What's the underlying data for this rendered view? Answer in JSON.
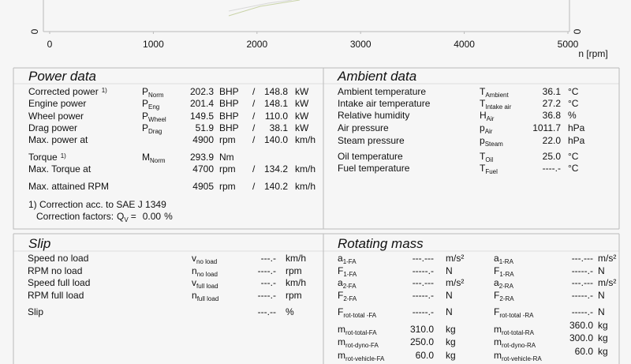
{
  "chart": {
    "xticks": [
      0,
      1000,
      2000,
      3000,
      4000,
      5000
    ],
    "xlabel": "n [rpm]",
    "y_left_tick": "0",
    "y_right_tick": "0"
  },
  "power_data": {
    "title": "Power data",
    "separator": "/",
    "rows": [
      {
        "label": "Corrected power",
        "note": "1)",
        "color": "#b8506a",
        "sym": "P",
        "sub": "Norm",
        "v1": "202.3",
        "u1": "BHP",
        "v2": "148.8",
        "u2": "kW"
      },
      {
        "label": "Engine power",
        "color": "#d23c3c",
        "sym": "P",
        "sub": "Eng",
        "v1": "201.4",
        "u1": "BHP",
        "v2": "148.1",
        "u2": "kW"
      },
      {
        "label": "Wheel power",
        "color": "#6a7ed2",
        "sym": "P",
        "sub": "Wheel",
        "v1": "149.5",
        "u1": "BHP",
        "v2": "110.0",
        "u2": "kW"
      },
      {
        "label": "Drag power",
        "color": "#5ea03c",
        "sym": "P",
        "sub": "Drag",
        "v1": "51.9",
        "u1": "BHP",
        "v2": "38.1",
        "u2": "kW"
      },
      {
        "label": "Max. power at",
        "color": "#111111",
        "v1": "4900",
        "u1": "rpm",
        "v2": "140.0",
        "u2": "km/h"
      },
      {
        "label": "Torque",
        "note": "1)",
        "color": "#b8506a",
        "sym": "M",
        "sub": "Norm",
        "v1": "293.9",
        "u1": "Nm"
      },
      {
        "label": "Max. Torque at",
        "color": "#111111",
        "v1": "4700",
        "u1": "rpm",
        "v2": "134.2",
        "u2": "km/h"
      },
      {
        "label": "Max. attained RPM",
        "color": "#111111",
        "v1": "4905",
        "u1": "rpm",
        "v2": "140.2",
        "u2": "km/h"
      }
    ],
    "footnote": "1) Correction acc. to SAE J 1349",
    "factors": {
      "label": "Correction factors:",
      "sym": "Q",
      "sub": "V",
      "eq": "=",
      "value": "0.00",
      "unit": "%"
    }
  },
  "ambient_data": {
    "title": "Ambient data",
    "rows": [
      {
        "label": "Ambient temperature",
        "sym": "T",
        "sub": "Ambient",
        "value": "36.1",
        "unit": "°C"
      },
      {
        "label": "Intake air temperature",
        "sym": "T",
        "sub": "Intake air",
        "value": "27.2",
        "unit": "°C"
      },
      {
        "label": "Relative humidity",
        "sym": "H",
        "sub": "Air",
        "value": "36.8",
        "unit": "%"
      },
      {
        "label": "Air pressure",
        "sym": "p",
        "sub": "Air",
        "value": "1011.7",
        "unit": "hPa"
      },
      {
        "label": "Steam pressure",
        "sym": "p",
        "sub": "Steam",
        "value": "22.0",
        "unit": "hPa"
      },
      {
        "label": "Oil temperature",
        "sym": "T",
        "sub": "Oil",
        "value": "25.0",
        "unit": "°C"
      },
      {
        "label": "Fuel temperature",
        "sym": "T",
        "sub": "Fuel",
        "value": "----.-",
        "unit": "°C"
      }
    ]
  },
  "slip": {
    "title": "Slip",
    "rows": [
      {
        "label": "Speed no load",
        "sym": "v",
        "sub": "no load",
        "value": "---.-",
        "unit": "km/h"
      },
      {
        "label": "RPM no load",
        "sym": "n",
        "sub": "no load",
        "value": "----.-",
        "unit": "rpm"
      },
      {
        "label": "Speed full load",
        "sym": "v",
        "sub": "full load",
        "value": "---.-",
        "unit": "km/h"
      },
      {
        "label": "RPM full load",
        "sym": "n",
        "sub": "full load",
        "value": "----.-",
        "unit": "rpm"
      },
      {
        "label": "Slip",
        "value": "---.--",
        "unit": "%"
      }
    ]
  },
  "rotating_mass": {
    "title": "Rotating mass",
    "front": [
      {
        "sym": "a",
        "sub": "1-FA",
        "value": "---.---",
        "unit": "m/s²"
      },
      {
        "sym": "F",
        "sub": "1-FA",
        "value": "-----.-",
        "unit": "N"
      },
      {
        "sym": "a",
        "sub": "2-FA",
        "value": "---.---",
        "unit": "m/s²"
      },
      {
        "sym": "F",
        "sub": "2-FA",
        "value": "-----.-",
        "unit": "N"
      },
      {
        "sym": "F",
        "sub": "rot-total -FA",
        "value": "-----.-",
        "unit": "N"
      },
      {
        "sym": "m",
        "sub": "rot-total-FA",
        "value": "310.0",
        "unit": "kg"
      },
      {
        "sym": "m",
        "sub": "rot-dyno-FA",
        "value": "250.0",
        "unit": "kg"
      },
      {
        "sym": "m",
        "sub": "rot-vehicle-FA",
        "value": "60.0",
        "unit": "kg"
      }
    ],
    "rear": [
      {
        "sym": "a",
        "sub": "1-RA",
        "value": "---.---",
        "unit": "m/s²"
      },
      {
        "sym": "F",
        "sub": "1-RA",
        "value": "-----.-",
        "unit": "N"
      },
      {
        "sym": "a",
        "sub": "2-RA",
        "value": "---.---",
        "unit": "m/s²"
      },
      {
        "sym": "F",
        "sub": "2-RA",
        "value": "-----.-",
        "unit": "N"
      },
      {
        "sym": "F",
        "sub": "rot-total -RA",
        "value": "-----.-",
        "unit": "N"
      },
      {
        "sym": "m",
        "sub": "rot-total-RA",
        "value": "360.0",
        "unit": "kg"
      },
      {
        "sym": "m",
        "sub": "rot-dyno-RA",
        "value": "300.0",
        "unit": "kg"
      },
      {
        "sym": "m",
        "sub": "rot-vehicle-RA",
        "value": "60.0",
        "unit": "kg"
      }
    ]
  }
}
